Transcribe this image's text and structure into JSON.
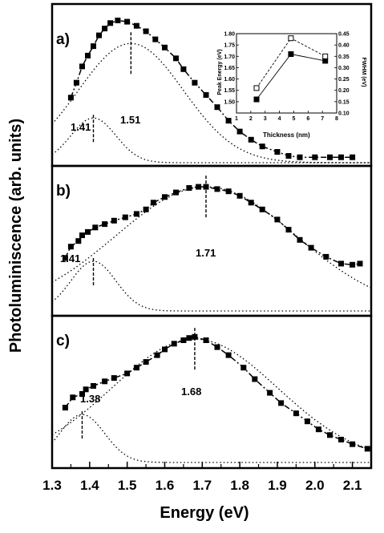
{
  "chart_data": {
    "type": "scatter",
    "xlabel": "Energy (eV)",
    "ylabel": "Photoluminiscence (arb. units)",
    "xlim": [
      1.3,
      2.15
    ],
    "x_ticks": [
      "1.3",
      "1.4",
      "1.5",
      "1.6",
      "1.7",
      "1.8",
      "1.9",
      "2.0",
      "2.1"
    ],
    "panels": [
      {
        "label": "a)",
        "ylim": [
          0,
          1.1
        ],
        "peak_labels": [
          "1.41",
          "1.51"
        ],
        "points": {
          "x": [
            1.35,
            1.365,
            1.38,
            1.395,
            1.41,
            1.425,
            1.44,
            1.455,
            1.475,
            1.5,
            1.525,
            1.55,
            1.575,
            1.6,
            1.63,
            1.65,
            1.68,
            1.71,
            1.74,
            1.77,
            1.8,
            1.83,
            1.86,
            1.9,
            1.93,
            1.96,
            2.0,
            2.04,
            2.07,
            2.1
          ],
          "y": [
            0.48,
            0.59,
            0.71,
            0.79,
            0.86,
            0.94,
            0.99,
            1.03,
            1.05,
            1.04,
            1.01,
            0.97,
            0.91,
            0.85,
            0.77,
            0.69,
            0.59,
            0.5,
            0.41,
            0.31,
            0.23,
            0.17,
            0.12,
            0.08,
            0.05,
            0.04,
            0.04,
            0.04,
            0.04,
            0.04
          ]
        },
        "fit_curves": [
          {
            "center": 1.41,
            "amplitude": 0.33,
            "width": 0.06
          },
          {
            "center": 1.51,
            "amplitude": 0.88,
            "width": 0.14
          }
        ]
      },
      {
        "label": "b)",
        "ylim": [
          0,
          1.2
        ],
        "peak_labels": [
          "1.41",
          "1.71"
        ],
        "points": {
          "x": [
            1.335,
            1.35,
            1.37,
            1.38,
            1.395,
            1.415,
            1.44,
            1.465,
            1.495,
            1.525,
            1.55,
            1.57,
            1.6,
            1.63,
            1.665,
            1.69,
            1.71,
            1.74,
            1.77,
            1.8,
            1.83,
            1.86,
            1.9,
            1.93,
            1.96,
            1.99,
            2.03,
            2.07,
            2.1,
            2.12
          ],
          "y": [
            0.47,
            0.57,
            0.62,
            0.67,
            0.7,
            0.74,
            0.77,
            0.8,
            0.83,
            0.86,
            0.9,
            0.96,
            1.01,
            1.05,
            1.09,
            1.1,
            1.1,
            1.08,
            1.06,
            1.02,
            0.96,
            0.9,
            0.81,
            0.72,
            0.63,
            0.56,
            0.48,
            0.42,
            0.41,
            0.42
          ]
        },
        "fit_curves": [
          {
            "center": 1.41,
            "amplitude": 0.44,
            "width": 0.06
          },
          {
            "center": 1.71,
            "amplitude": 1.1,
            "width": 0.24
          }
        ]
      },
      {
        "label": "c)",
        "ylim": [
          0,
          1.2
        ],
        "peak_labels": [
          "1.38",
          "1.68"
        ],
        "points": {
          "x": [
            1.335,
            1.355,
            1.38,
            1.39,
            1.41,
            1.44,
            1.465,
            1.5,
            1.525,
            1.55,
            1.58,
            1.6,
            1.625,
            1.65,
            1.665,
            1.68,
            1.71,
            1.74,
            1.77,
            1.81,
            1.84,
            1.88,
            1.91,
            1.95,
            1.98,
            2.01,
            2.04,
            2.07,
            2.1,
            2.14
          ],
          "y": [
            0.48,
            0.57,
            0.6,
            0.64,
            0.67,
            0.71,
            0.74,
            0.78,
            0.83,
            0.88,
            0.94,
            0.99,
            1.04,
            1.07,
            1.09,
            1.1,
            1.07,
            1.01,
            0.94,
            0.83,
            0.73,
            0.61,
            0.52,
            0.43,
            0.36,
            0.29,
            0.24,
            0.2,
            0.16,
            0.12
          ]
        },
        "fit_curves": [
          {
            "center": 1.38,
            "amplitude": 0.42,
            "width": 0.06
          },
          {
            "center": 1.68,
            "amplitude": 1.08,
            "width": 0.22
          }
        ]
      }
    ],
    "inset": {
      "xlabel": "Thickness (nm)",
      "ylabel_left": "Peak Energy (eV)",
      "ylabel_right": "FWHM (eV)",
      "xlim": [
        1,
        8
      ],
      "ylim_left": [
        1.45,
        1.8
      ],
      "ylim_right": [
        0.1,
        0.45
      ],
      "x_ticks": [
        "1",
        "2",
        "3",
        "4",
        "5",
        "6",
        "7",
        "8"
      ],
      "y_ticks_left": [
        "1.50",
        "1.55",
        "1.60",
        "1.65",
        "1.70",
        "1.75",
        "1.80"
      ],
      "y_ticks_right": [
        "0.10",
        "0.15",
        "0.20",
        "0.25",
        "0.30",
        "0.35",
        "0.40",
        "0.45"
      ],
      "series": [
        {
          "name": "Peak Energy (eV)",
          "marker": "filled-square",
          "x": [
            2.4,
            4.8,
            7.2
          ],
          "y": [
            1.51,
            1.71,
            1.68
          ]
        },
        {
          "name": "FWHM (eV)",
          "marker": "open-square",
          "x": [
            2.4,
            4.8,
            7.2
          ],
          "y": [
            0.21,
            0.43,
            0.35
          ]
        }
      ]
    }
  }
}
